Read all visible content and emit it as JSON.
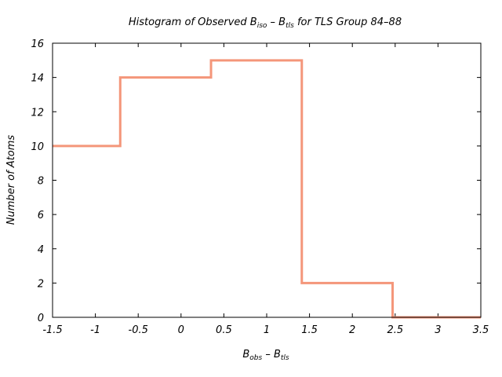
{
  "chart_data": {
    "type": "histogram",
    "title": {
      "prefix": "Histogram of Observed B",
      "sub1": "iso",
      "mid": " – B",
      "sub2": "tls",
      "suffix": "  for TLS Group 84–88"
    },
    "xlabel": {
      "main1": "B",
      "sub1": "obs",
      "mid": " – B",
      "sub2": "tls"
    },
    "ylabel": "Number of Atoms",
    "xlim": [
      -1.5,
      3.5
    ],
    "ylim": [
      0,
      16
    ],
    "xticks": [
      {
        "v": -1.5,
        "label": "-1.5"
      },
      {
        "v": -1.0,
        "label": "-1"
      },
      {
        "v": -0.5,
        "label": "-0.5"
      },
      {
        "v": 0,
        "label": "0"
      },
      {
        "v": 0.5,
        "label": "0.5"
      },
      {
        "v": 1.0,
        "label": "1"
      },
      {
        "v": 1.5,
        "label": "1.5"
      },
      {
        "v": 2.0,
        "label": "2"
      },
      {
        "v": 2.5,
        "label": "2.5"
      },
      {
        "v": 3.0,
        "label": "3"
      },
      {
        "v": 3.5,
        "label": "3.5"
      }
    ],
    "yticks": [
      {
        "v": 0,
        "label": "0"
      },
      {
        "v": 2,
        "label": "2"
      },
      {
        "v": 4,
        "label": "4"
      },
      {
        "v": 6,
        "label": "6"
      },
      {
        "v": 8,
        "label": "8"
      },
      {
        "v": 10,
        "label": "10"
      },
      {
        "v": 12,
        "label": "12"
      },
      {
        "v": 14,
        "label": "14"
      },
      {
        "v": 16,
        "label": "16"
      }
    ],
    "grid": false,
    "line_color": "#f4967a",
    "bins": [
      {
        "x0": -1.5,
        "x1": -0.71,
        "count": 10
      },
      {
        "x0": -0.71,
        "x1": 0.35,
        "count": 14
      },
      {
        "x0": 0.35,
        "x1": 1.41,
        "count": 15
      },
      {
        "x0": 1.41,
        "x1": 2.47,
        "count": 2
      },
      {
        "x0": 2.47,
        "x1": 3.5,
        "count": 0
      }
    ]
  }
}
